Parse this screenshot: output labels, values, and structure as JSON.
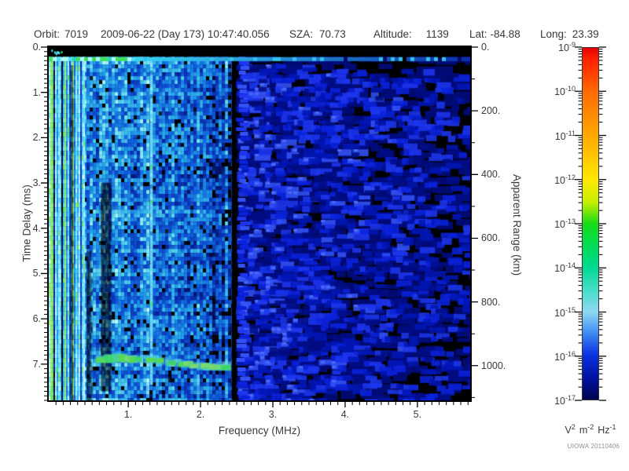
{
  "header": {
    "items": [
      {
        "label": "Orbit:",
        "value": "7019"
      },
      {
        "label": "",
        "value": "2009-06-22 (Day 173) 10:47:40.056"
      },
      {
        "label": "SZA:",
        "value": "70.73"
      },
      {
        "label": "Altitude:",
        "value": "1139"
      },
      {
        "label": "Lat:",
        "value": "-84.88"
      },
      {
        "label": "Long:",
        "value": "23.39"
      }
    ]
  },
  "watermark": "UIOWA 20110406",
  "chart_data": {
    "type": "heatmap",
    "xlabel": "Frequency (MHz)",
    "ylabel": "Time Delay (ms)",
    "y2label": "Apparent Range (km)",
    "x_range_mhz": [
      -0.1,
      5.73
    ],
    "y_range_ms": [
      0,
      7.8
    ],
    "y2_range_km": [
      0,
      1109
    ],
    "x_tick_values": [
      1,
      2,
      3,
      4,
      5
    ],
    "x_tick_labels": [
      "1.",
      "2.",
      "3.",
      "4.",
      "5."
    ],
    "x_minor_step": 0.1,
    "y_tick_values": [
      0,
      1,
      2,
      3,
      4,
      5,
      6,
      7
    ],
    "y_tick_labels": [
      "0.",
      "1.",
      "2.",
      "3.",
      "4.",
      "5.",
      "6.",
      "7."
    ],
    "y_minor_step": 0.1,
    "y2_tick_values": [
      0,
      200,
      400,
      600,
      800,
      1000
    ],
    "y2_tick_labels": [
      "0.",
      "200.",
      "400.",
      "600.",
      "800.",
      "1000."
    ],
    "y2_minor_step": 100,
    "grid": false,
    "colorbar": {
      "tick_base": "10",
      "tick_exponents": [
        "-9",
        "-10",
        "-11",
        "-12",
        "-13",
        "-14",
        "-15",
        "-16",
        "-17"
      ],
      "unit_parts": [
        [
          "V",
          "2"
        ],
        [
          "m",
          "-2"
        ],
        [
          "Hz",
          "-1"
        ]
      ],
      "gradient": [
        [
          0.0,
          "#e60000"
        ],
        [
          0.03,
          "#ff2000"
        ],
        [
          0.125,
          "#ff6a00"
        ],
        [
          0.25,
          "#ffa800"
        ],
        [
          0.375,
          "#ffe800"
        ],
        [
          0.44,
          "#c4ef00"
        ],
        [
          0.5,
          "#16dc16"
        ],
        [
          0.565,
          "#00dc58"
        ],
        [
          0.625,
          "#00d892"
        ],
        [
          0.69,
          "#48ddc8"
        ],
        [
          0.75,
          "#8fd8f2"
        ],
        [
          0.81,
          "#3f8cf4"
        ],
        [
          0.875,
          "#0a30e0"
        ],
        [
          0.94,
          "#0013a0"
        ],
        [
          1.0,
          "#000450"
        ]
      ]
    },
    "features": [
      {
        "name": "left-noise-field",
        "kind": "noise",
        "f": [
          0.38,
          2.43
        ],
        "t": [
          0.21,
          7.8
        ],
        "intensity": [
          0.25,
          0.95
        ]
      },
      {
        "name": "low-frequency-stripes",
        "kind": "v-stripes",
        "f": [
          -0.1,
          0.38
        ],
        "t": [
          0.21,
          7.8
        ],
        "palette": [
          "#29e060",
          "#38d8f0",
          "#18a8f0",
          "#0848d0",
          "#021040"
        ]
      },
      {
        "name": "dark-column-1",
        "kind": "shade",
        "f": [
          0.2,
          0.235
        ],
        "t": [
          0.4,
          7.8
        ],
        "alpha": 0.5
      },
      {
        "name": "dark-column-2",
        "kind": "shade",
        "f": [
          0.62,
          0.76
        ],
        "t": [
          3.0,
          7.6
        ],
        "alpha": 0.5
      },
      {
        "name": "dark-column-3",
        "kind": "shade",
        "f": [
          0.42,
          0.49
        ],
        "t": [
          4.5,
          7.8
        ],
        "alpha": 0.38
      },
      {
        "name": "narrowband-cyan-line",
        "kind": "v-line",
        "f": [
          1.3,
          1.34
        ],
        "t": [
          0.35,
          7.45
        ],
        "color": "#66d8f5"
      },
      {
        "name": "ionospheric-echo-trace",
        "kind": "trace",
        "points": [
          [
            0.56,
            6.9
          ],
          [
            0.68,
            6.88
          ],
          [
            0.8,
            6.86
          ],
          [
            0.95,
            6.89
          ],
          [
            1.1,
            6.9
          ],
          [
            1.25,
            6.91
          ],
          [
            1.4,
            6.93
          ],
          [
            1.55,
            6.97
          ],
          [
            1.7,
            7.0
          ],
          [
            1.85,
            7.03
          ],
          [
            2.0,
            7.05
          ],
          [
            2.12,
            7.06
          ],
          [
            2.22,
            7.07
          ]
        ],
        "core_colors": [
          "#3ed467",
          "#58d84f",
          "#7bd96a",
          "#46cfa0"
        ],
        "glow_color": "#59c8e8"
      },
      {
        "name": "echo-trace-tail",
        "kind": "h-streak",
        "f": [
          2.22,
          2.92
        ],
        "t": [
          6.94,
          7.02
        ],
        "color": "rgba(96,198,246,0.5)"
      },
      {
        "name": "transmitter-gap",
        "kind": "fill",
        "f": [
          2.43,
          2.49
        ],
        "t": [
          0.21,
          7.8
        ],
        "color": "#000000"
      },
      {
        "name": "right-blob-field",
        "kind": "blobs",
        "f": [
          2.49,
          5.73
        ],
        "t": [
          0.25,
          7.8
        ],
        "palette": [
          "#000c84",
          "#0016b4",
          "#0a22dc",
          "#1d36ee",
          "#3352f6"
        ]
      },
      {
        "name": "top-no-data-band",
        "kind": "fill",
        "f": [
          -0.1,
          5.73
        ],
        "t": [
          0,
          0.21
        ],
        "color": "#000000"
      },
      {
        "name": "top-band-speckles",
        "kind": "speckles",
        "f": [
          -0.1,
          0.1
        ],
        "t": [
          0.02,
          0.2
        ],
        "colors": [
          "#4fe0f8",
          "#3fe060"
        ]
      },
      {
        "name": "calibration-line",
        "kind": "calib",
        "f": [
          -0.1,
          5.73
        ],
        "t": [
          0.22,
          0.31
        ],
        "palette": [
          "#3fe060",
          "#4fe0f8",
          "#b0ffff",
          "#2ad4c8",
          "#38d4f2",
          "#0a2fa8"
        ]
      }
    ]
  }
}
